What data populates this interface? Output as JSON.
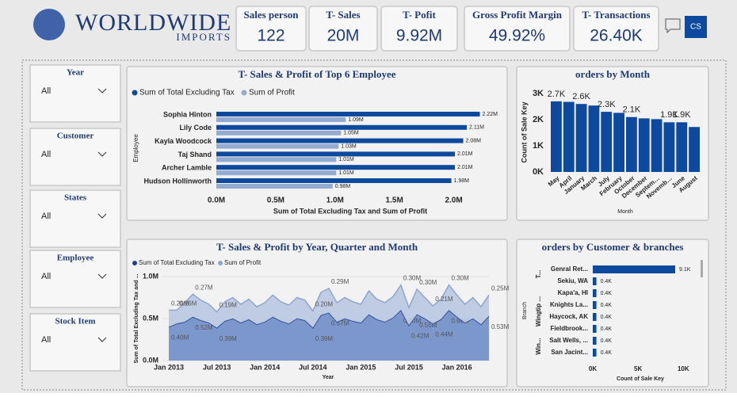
{
  "header": {
    "logo_main": "WORLDWIDE",
    "logo_sub": "IMPORTS",
    "user": "CS"
  },
  "kpis": [
    {
      "label": "Sales person",
      "value": "122"
    },
    {
      "label": "T- Sales",
      "value": "20M"
    },
    {
      "label": "T- Pofit",
      "value": "9.92M"
    },
    {
      "label": "Gross Profit Margin",
      "value": "49.92%"
    },
    {
      "label": "T- Transactions",
      "value": "26.40K"
    }
  ],
  "filters": [
    {
      "label": "Year",
      "value": "All"
    },
    {
      "label": "Customer",
      "value": "All"
    },
    {
      "label": "States",
      "value": "All"
    },
    {
      "label": "Employee",
      "value": "All"
    },
    {
      "label": "Stock Item",
      "value": "All"
    }
  ],
  "chart_data": [
    {
      "type": "hbar",
      "title": "T- Sales & Profit of Top 6 Employee",
      "y_label": "Employee",
      "x_label": "Sum of Total Excluding Tax and Sum of Profit",
      "categories": [
        "Sophia Hinton",
        "Lily Code",
        "Kayla Woodcock",
        "Taj Shand",
        "Archer Lamble",
        "Hudson Hollinworth"
      ],
      "series": [
        {
          "name": "Sum of Total Excluding Tax",
          "color": "#0d4a9e",
          "values": [
            2220000,
            2110000,
            2080000,
            2010000,
            2010000,
            1980000
          ],
          "value_labels": [
            "2.22M",
            "2.11M",
            "2.08M",
            "2.01M",
            "2.01M",
            "1.98M"
          ]
        },
        {
          "name": "Sum of Profit",
          "color": "#93abd1",
          "values": [
            1090000,
            1050000,
            1030000,
            1010000,
            1010000,
            980000
          ],
          "value_labels": [
            "1.09M",
            "1.05M",
            "1.03M",
            "1.01M",
            "1.01M",
            "0.98M"
          ]
        }
      ],
      "xlim": [
        0,
        2250000
      ],
      "xticks": [
        {
          "value": 0,
          "label": "0.0M"
        },
        {
          "value": 500000,
          "label": "0.5M"
        },
        {
          "value": 1000000,
          "label": "1.0M"
        },
        {
          "value": 1500000,
          "label": "1.5M"
        },
        {
          "value": 2000000,
          "label": "2.0M"
        }
      ]
    },
    {
      "type": "bar",
      "title": "orders by Month",
      "y_label": "Count of Sale Key",
      "x_label": "Month",
      "categories": [
        "May",
        "April",
        "January",
        "March",
        "July",
        "February",
        "October",
        "December",
        "Septem…",
        "Novemb…",
        "June",
        "August"
      ],
      "values": [
        2700,
        2680,
        2600,
        2540,
        2300,
        2260,
        2100,
        2050,
        2020,
        1900,
        1900,
        1720
      ],
      "value_labels": [
        "2.7K",
        null,
        "2.6K",
        null,
        "2.3K",
        null,
        "2.1K",
        null,
        null,
        "1.9K",
        "1.9K",
        null
      ],
      "color": "#0d4a9e",
      "ylim": [
        0,
        3000
      ],
      "yticks": [
        {
          "value": 0,
          "label": "0K"
        },
        {
          "value": 1000,
          "label": "1K"
        },
        {
          "value": 2000,
          "label": "2K"
        },
        {
          "value": 3000,
          "label": "3K"
        }
      ]
    },
    {
      "type": "stacked-area",
      "title": "T- Sales & Profit by Year, Quarter and Month",
      "y_label": "Sum of Total Excluding Tax and ...",
      "x_label": "Year",
      "x": [
        "2013-01",
        "2013-02",
        "2013-03",
        "2013-04",
        "2013-05",
        "2013-06",
        "2013-07",
        "2013-08",
        "2013-09",
        "2013-10",
        "2013-11",
        "2013-12",
        "2014-01",
        "2014-02",
        "2014-03",
        "2014-04",
        "2014-05",
        "2014-06",
        "2014-07",
        "2014-08",
        "2014-09",
        "2014-10",
        "2014-11",
        "2014-12",
        "2015-01",
        "2015-02",
        "2015-03",
        "2015-04",
        "2015-05",
        "2015-06",
        "2015-07",
        "2015-08",
        "2015-09",
        "2015-10",
        "2015-11",
        "2015-12",
        "2016-01",
        "2016-02",
        "2016-03",
        "2016-04",
        "2016-05"
      ],
      "series": [
        {
          "name": "Sum of Total Excluding Tax",
          "color": "#1f3f8a",
          "values": [
            400000,
            440000,
            460000,
            520000,
            480000,
            450000,
            390000,
            470000,
            500000,
            450000,
            490000,
            430000,
            460000,
            520000,
            470000,
            440000,
            500000,
            480000,
            390000,
            540000,
            570000,
            460000,
            500000,
            470000,
            450000,
            550000,
            490000,
            460000,
            510000,
            600000,
            420000,
            550000,
            500000,
            440000,
            490000,
            600000,
            520000,
            450000,
            500000,
            430000,
            530000
          ],
          "value_labels": [
            "0.40M",
            null,
            null,
            "0.52M",
            null,
            null,
            "0.39M",
            null,
            null,
            null,
            null,
            null,
            null,
            null,
            null,
            null,
            null,
            null,
            "0.39M",
            null,
            "0.57M",
            null,
            null,
            null,
            null,
            null,
            null,
            null,
            null,
            "0.60M",
            "0.42M",
            "0.55M",
            null,
            "0.44M",
            null,
            "0.60M",
            null,
            null,
            null,
            null,
            "0.53M"
          ]
        },
        {
          "name": "Sum of Profit",
          "color": "#8fa6cc",
          "values": [
            200000,
            160000,
            230000,
            270000,
            240000,
            220000,
            190000,
            230000,
            250000,
            220000,
            240000,
            210000,
            230000,
            260000,
            230000,
            220000,
            250000,
            240000,
            200000,
            270000,
            290000,
            230000,
            250000,
            230000,
            220000,
            280000,
            240000,
            230000,
            250000,
            300000,
            210000,
            300000,
            250000,
            210000,
            240000,
            300000,
            260000,
            220000,
            250000,
            210000,
            250000
          ],
          "value_labels": [
            "0.20M",
            "0.16M",
            null,
            "0.27M",
            null,
            null,
            "0.19M",
            null,
            null,
            null,
            null,
            null,
            null,
            null,
            null,
            null,
            null,
            null,
            "0.20M",
            null,
            "0.29M",
            null,
            null,
            null,
            null,
            null,
            null,
            null,
            null,
            "0.30M",
            null,
            "0.30M",
            null,
            "0.21M",
            null,
            "0.30M",
            null,
            null,
            null,
            null,
            "0.25M"
          ]
        }
      ],
      "ylim": [
        0,
        1000000
      ],
      "yticks": [
        {
          "value": 0,
          "label": "0.0M"
        },
        {
          "value": 500000,
          "label": "0.5M"
        },
        {
          "value": 1000000,
          "label": "1.0M"
        }
      ],
      "xticks": [
        {
          "value": "2013-01",
          "label": "Jan 2013"
        },
        {
          "value": "2013-07",
          "label": "Jul 2013"
        },
        {
          "value": "2014-01",
          "label": "Jan 2014"
        },
        {
          "value": "2014-07",
          "label": "Jul 2014"
        },
        {
          "value": "2015-01",
          "label": "Jan 2015"
        },
        {
          "value": "2015-07",
          "label": "Jul 2015"
        },
        {
          "value": "2016-01",
          "label": "Jan 2016"
        }
      ]
    },
    {
      "type": "hbar-single",
      "title": "orders by Customer & branches",
      "y_label": "Branch",
      "x_label": "Count of Sale Key",
      "group_labels": [
        "T...",
        "Wingtip ...",
        "Win..."
      ],
      "categories": [
        "Genral Ret...",
        "Sekiu, WA",
        "Kapa'a, HI",
        "Knights La...",
        "Haycock, AK",
        "Fieldbrook...",
        "Salt Wells, ...",
        "San Jacint..."
      ],
      "values": [
        9100,
        400,
        400,
        400,
        400,
        400,
        400,
        400
      ],
      "value_labels": [
        "9.1K",
        "0.4K",
        "0.4K",
        "0.4K",
        "0.4K",
        "0.4K",
        "0.4K",
        "0.4K"
      ],
      "color": "#0d4a9e",
      "xlim": [
        0,
        10500
      ],
      "xticks": [
        {
          "value": 0,
          "label": "0K"
        },
        {
          "value": 5000,
          "label": "5K"
        },
        {
          "value": 10000,
          "label": "10K"
        }
      ]
    }
  ]
}
